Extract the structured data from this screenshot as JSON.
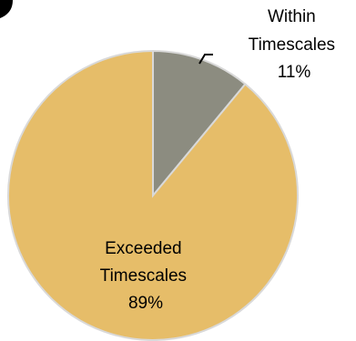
{
  "chart_data": {
    "type": "pie",
    "slices": [
      {
        "label_lines": [
          "Within",
          "Timescales"
        ],
        "percent_label": "11%",
        "value": 11,
        "color": "#8c8c80"
      },
      {
        "label_lines": [
          "Exceeded",
          "Timescales"
        ],
        "percent_label": "89%",
        "value": 89,
        "color": "#e6bd69"
      }
    ],
    "start": "12 o'clock",
    "direction": "clockwise",
    "slice_border_color": "#d9d9d9",
    "title": "",
    "legend": "none"
  }
}
